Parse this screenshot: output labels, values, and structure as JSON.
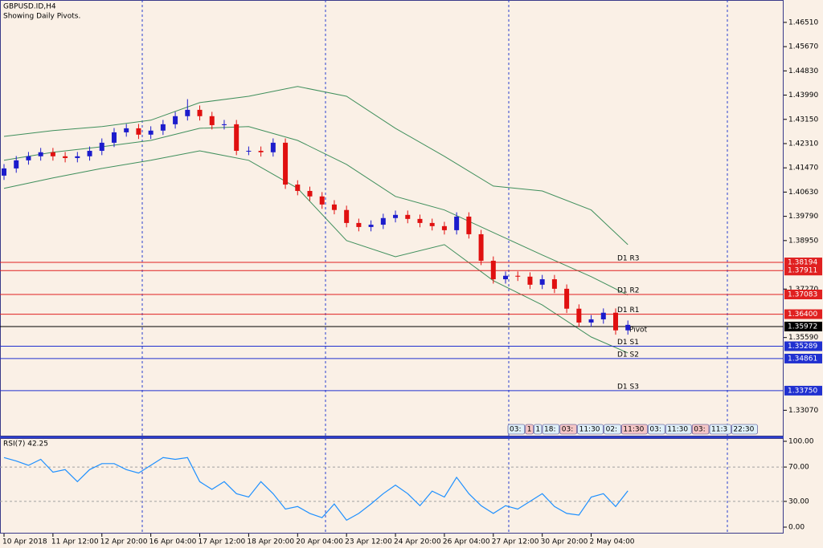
{
  "chart_data": {
    "type": "candlestick",
    "title": "GBPUSD.ID,H4",
    "subtitle": "Showing Daily Pivots.",
    "xticks": [
      {
        "value": 0,
        "label": "10 Apr 2018"
      },
      {
        "value": 4,
        "label": "11 Apr 12:00"
      },
      {
        "value": 8,
        "label": "12 Apr 20:00"
      },
      {
        "value": 12,
        "label": "16 Apr 04:00"
      },
      {
        "value": 16,
        "label": "17 Apr 12:00"
      },
      {
        "value": 20,
        "label": "18 Apr 20:00"
      },
      {
        "value": 24,
        "label": "20 Apr 04:00"
      },
      {
        "value": 28,
        "label": "23 Apr 12:00"
      },
      {
        "value": 32,
        "label": "24 Apr 20:00"
      },
      {
        "value": 36,
        "label": "26 Apr 04:00"
      },
      {
        "value": 40,
        "label": "27 Apr 12:00"
      },
      {
        "value": 44,
        "label": "30 Apr 20:00"
      },
      {
        "value": 48,
        "label": "2 May 04:00"
      }
    ],
    "open": [
      1.412,
      1.4145,
      1.4173,
      1.4187,
      1.4201,
      1.4187,
      1.4181,
      1.4187,
      1.4206,
      1.4234,
      1.427,
      1.4284,
      1.4262,
      1.4276,
      1.4298,
      1.4326,
      1.4348,
      1.4326,
      1.4295,
      1.4298,
      1.4206,
      1.4206,
      1.4201,
      1.4234,
      1.4089,
      1.4067,
      1.4048,
      1.402,
      1.4001,
      1.3956,
      1.3942,
      1.395,
      1.3973,
      1.3984,
      1.397,
      1.3956,
      1.3945,
      1.3931,
      1.3978,
      1.3917,
      1.3825,
      1.3761,
      1.3773,
      1.377,
      1.3742,
      1.3761,
      1.3728,
      1.3659,
      1.3611,
      1.3622,
      1.3645,
      1.3584
    ],
    "high": [
      1.416,
      1.4188,
      1.4202,
      1.4216,
      1.4216,
      1.4202,
      1.4202,
      1.4221,
      1.4249,
      1.4285,
      1.4299,
      1.4299,
      1.4291,
      1.4313,
      1.4341,
      1.4385,
      1.4363,
      1.4341,
      1.4313,
      1.4313,
      1.4221,
      1.4221,
      1.4249,
      1.4249,
      1.4104,
      1.4082,
      1.4063,
      1.4035,
      1.4016,
      1.3971,
      1.3965,
      1.3988,
      1.3999,
      1.3999,
      1.3985,
      1.3971,
      1.396,
      1.3993,
      1.3993,
      1.3932,
      1.384,
      1.3788,
      1.3788,
      1.3785,
      1.3776,
      1.3776,
      1.3743,
      1.3674,
      1.3637,
      1.366,
      1.366,
      1.3618
    ],
    "low": [
      1.4105,
      1.413,
      1.4158,
      1.4172,
      1.4172,
      1.4166,
      1.4166,
      1.4172,
      1.4191,
      1.4219,
      1.4255,
      1.4247,
      1.4247,
      1.4261,
      1.4283,
      1.4311,
      1.4311,
      1.428,
      1.428,
      1.4191,
      1.4191,
      1.4186,
      1.4186,
      1.4074,
      1.4052,
      1.4033,
      1.4005,
      1.3986,
      1.3941,
      1.3927,
      1.3927,
      1.3935,
      1.3958,
      1.3955,
      1.3941,
      1.393,
      1.3916,
      1.3916,
      1.3902,
      1.381,
      1.3746,
      1.3746,
      1.3755,
      1.3727,
      1.3727,
      1.3713,
      1.3644,
      1.3596,
      1.3596,
      1.3607,
      1.3569,
      1.3569
    ],
    "close": [
      1.4145,
      1.4173,
      1.4187,
      1.4201,
      1.4187,
      1.4181,
      1.4187,
      1.4206,
      1.4234,
      1.427,
      1.4284,
      1.4262,
      1.4276,
      1.4298,
      1.4326,
      1.4348,
      1.4326,
      1.4295,
      1.4298,
      1.4206,
      1.4206,
      1.4201,
      1.4234,
      1.4089,
      1.4067,
      1.4048,
      1.402,
      1.4001,
      1.3956,
      1.3942,
      1.395,
      1.3973,
      1.3984,
      1.397,
      1.3956,
      1.3945,
      1.3931,
      1.3978,
      1.3917,
      1.3825,
      1.3761,
      1.3773,
      1.377,
      1.3742,
      1.3761,
      1.3728,
      1.3659,
      1.3611,
      1.3622,
      1.3645,
      1.3584,
      1.3603
    ],
    "up_color": "#1c1ccc",
    "down_color": "#e01010",
    "ylim": [
      1.3219,
      1.4723
    ],
    "yticks": [
      {
        "value": 1.4651,
        "label": "1.46510"
      },
      {
        "value": 1.4567,
        "label": "1.45670"
      },
      {
        "value": 1.4483,
        "label": "1.44830"
      },
      {
        "value": 1.4399,
        "label": "1.43990"
      },
      {
        "value": 1.4315,
        "label": "1.43150"
      },
      {
        "value": 1.4231,
        "label": "1.42310"
      },
      {
        "value": 1.4147,
        "label": "1.41470"
      },
      {
        "value": 1.4063,
        "label": "1.40630"
      },
      {
        "value": 1.3979,
        "label": "1.39790"
      },
      {
        "value": 1.3895,
        "label": "1.38950"
      },
      {
        "value": 1.3727,
        "label": "1.37270"
      },
      {
        "value": 1.3559,
        "label": "1.35590"
      },
      {
        "value": 1.3307,
        "label": "1.33070"
      }
    ],
    "bands": {
      "color": "#3f8f5c",
      "x": [
        0,
        4,
        8,
        12,
        16,
        20,
        24,
        28,
        32,
        36,
        40,
        44,
        48,
        51
      ],
      "upper": [
        1.4256,
        1.4276,
        1.429,
        1.4312,
        1.4373,
        1.4395,
        1.4429,
        1.4395,
        1.4284,
        1.4187,
        1.4084,
        1.4067,
        1.4001,
        1.3881
      ],
      "middle": [
        1.4173,
        1.4201,
        1.422,
        1.4242,
        1.4284,
        1.429,
        1.4242,
        1.4159,
        1.4048,
        1.4001,
        1.3923,
        1.3845,
        1.377,
        1.3706
      ],
      "lower": [
        1.4076,
        1.4112,
        1.4145,
        1.4173,
        1.4206,
        1.4173,
        1.4076,
        1.3895,
        1.3839,
        1.3881,
        1.3756,
        1.3672,
        1.3561,
        1.3506
      ]
    },
    "pivots": [
      {
        "name": "D1 R3",
        "value": 1.38194,
        "value_label": "1.38194",
        "color": "#e02020"
      },
      {
        "value": 1.37911,
        "value_label": "1.37911",
        "color": "#e02020"
      },
      {
        "name": "D1 R2",
        "value": 1.37083,
        "value_label": "1.37083",
        "color": "#e02020"
      },
      {
        "name": "D1 R1",
        "value": 1.364,
        "value_label": "1.36400",
        "color": "#e02020"
      },
      {
        "name": "Pivot",
        "value": 1.35972,
        "value_label": "1.35972",
        "color": "#000000"
      },
      {
        "name": "D1 S1",
        "value": 1.35289,
        "value_label": "1.35289",
        "color": "#2030d0"
      },
      {
        "name": "D1 S2",
        "value": 1.34861,
        "value_label": "1.34861",
        "color": "#2030d0"
      },
      {
        "name": "D1 S3",
        "value": 1.3375,
        "value_label": "1.33750",
        "color": "#2030d0"
      }
    ],
    "session_labels": [
      "03:",
      "1",
      "1",
      "18:",
      "03:",
      "11:30",
      "02:",
      "11:30",
      "03:",
      "11:30",
      "03:",
      "11:3",
      "22:30"
    ],
    "rsi": {
      "title": "RSI(7) 42.25",
      "color": "#1e90ff",
      "values": [
        81,
        77,
        72,
        79,
        64,
        67,
        53,
        67,
        74,
        74,
        67,
        63,
        72,
        81,
        79,
        81,
        53,
        44,
        53,
        39,
        35,
        53,
        39,
        21,
        24,
        16,
        11,
        27,
        8,
        16,
        27,
        39,
        49,
        39,
        25,
        42,
        35,
        58,
        39,
        25,
        16,
        25,
        21,
        30,
        39,
        24,
        16,
        14,
        35,
        39,
        24,
        42.25
      ],
      "ylim": [
        0,
        100
      ],
      "yticks": [
        {
          "value": 100,
          "label": "100.00"
        },
        {
          "value": 70,
          "label": "70.00"
        },
        {
          "value": 30,
          "label": "30.00"
        },
        {
          "value": 0,
          "label": "0.00"
        }
      ]
    }
  }
}
